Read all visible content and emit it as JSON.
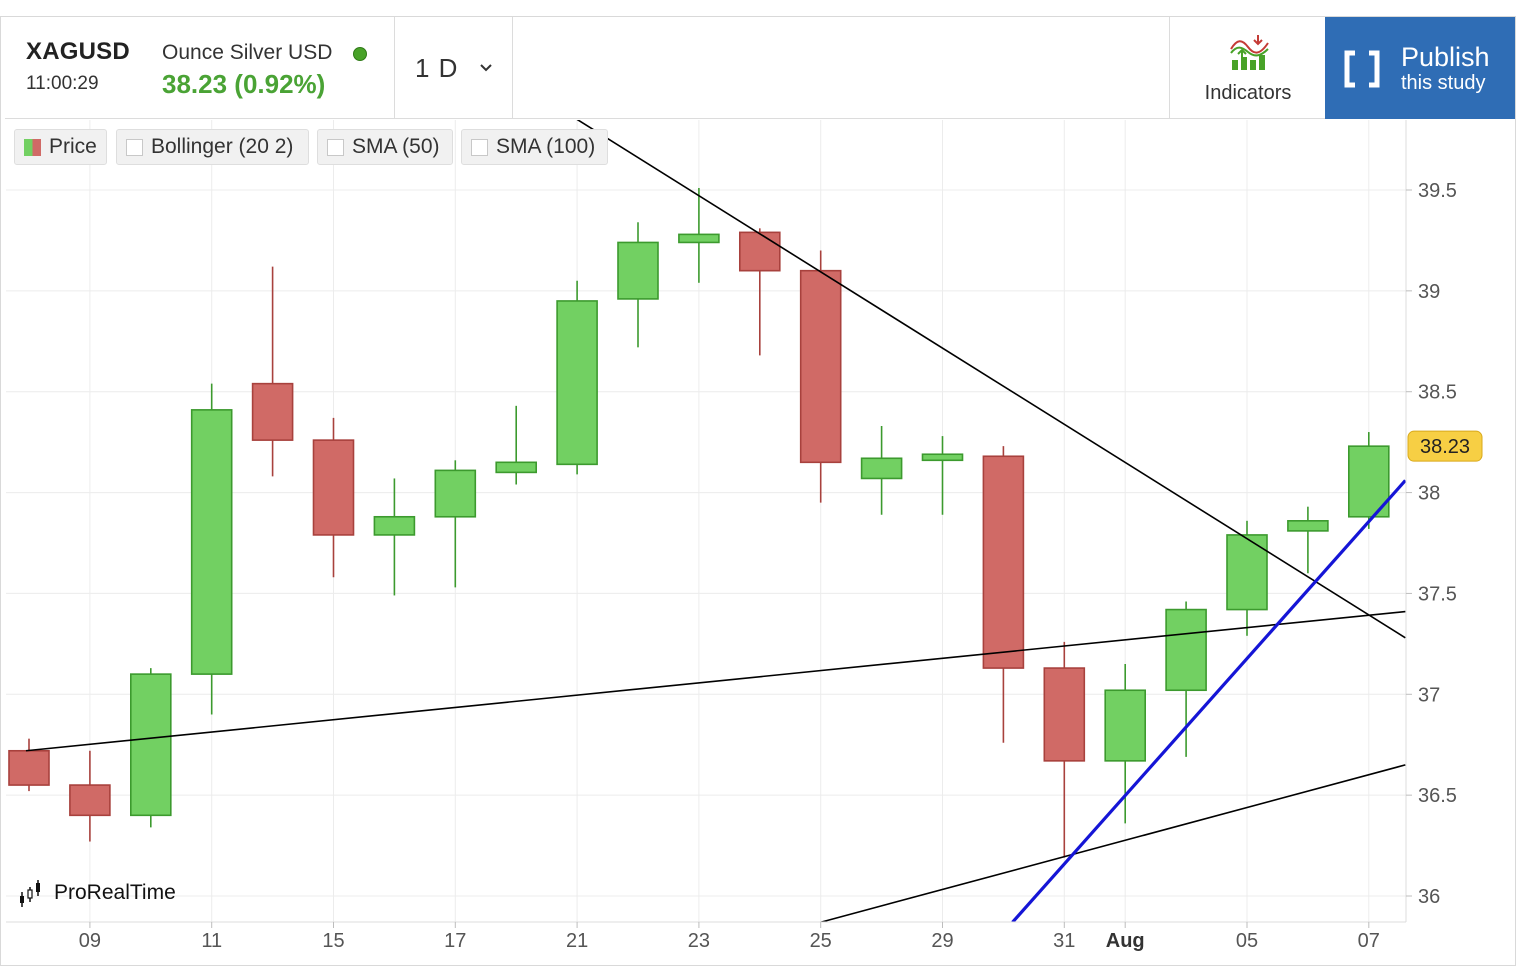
{
  "header": {
    "symbol": "XAGUSD",
    "symbol_name": "Ounce Silver USD",
    "time": "11:00:29",
    "price_change": "38.23 (0.92%)",
    "timeframe": "1 D",
    "indicators_label": "Indicators",
    "publish_line1": "Publish",
    "publish_line2": "this study"
  },
  "legend": {
    "price": "Price",
    "bollinger": "Bollinger (20 2)",
    "sma50": "SMA (50)",
    "sma100": "SMA (100)"
  },
  "watermark": "ProRealTime",
  "colors": {
    "up": "#72d062",
    "up_border": "#3c9a2e",
    "down": "#d06a66",
    "down_border": "#a8413d",
    "accent": "#2f6db5",
    "price_tag": "#f7cf44",
    "trend_blue": "#1515d6"
  },
  "chart_data": {
    "type": "candlestick",
    "symbol": "XAGUSD",
    "interval": "1 D",
    "last_price": 38.23,
    "last_price_label": "38.23",
    "y_ticks": [
      "39.5",
      "39",
      "38.5",
      "38",
      "37.5",
      "37",
      "36.5",
      "36"
    ],
    "y_tick_values": [
      39.5,
      39,
      38.5,
      38,
      37.5,
      37,
      36.5,
      36
    ],
    "x_tick_labels": [
      "09",
      "11",
      "15",
      "17",
      "21",
      "23",
      "25",
      "29",
      "31",
      "Aug",
      "05",
      "07"
    ],
    "x_tick_index": [
      1,
      3,
      5,
      7,
      9,
      11,
      13,
      15,
      17,
      18,
      20,
      22
    ],
    "ylim": [
      35.87,
      39.85
    ],
    "grid": true,
    "candles": [
      {
        "date": "Jul 08",
        "open": 36.72,
        "high": 36.78,
        "low": 36.52,
        "close": 36.55
      },
      {
        "date": "Jul 09",
        "open": 36.55,
        "high": 36.72,
        "low": 36.27,
        "close": 36.4
      },
      {
        "date": "Jul 10",
        "open": 36.4,
        "high": 37.13,
        "low": 36.34,
        "close": 37.1
      },
      {
        "date": "Jul 11",
        "open": 37.1,
        "high": 38.54,
        "low": 36.9,
        "close": 38.41
      },
      {
        "date": "Jul 14",
        "open": 38.54,
        "high": 39.12,
        "low": 38.08,
        "close": 38.26
      },
      {
        "date": "Jul 15",
        "open": 38.26,
        "high": 38.37,
        "low": 37.58,
        "close": 37.79
      },
      {
        "date": "Jul 16",
        "open": 37.79,
        "high": 38.07,
        "low": 37.49,
        "close": 37.88
      },
      {
        "date": "Jul 17",
        "open": 37.88,
        "high": 38.16,
        "low": 37.53,
        "close": 38.11
      },
      {
        "date": "Jul 18",
        "open": 38.1,
        "high": 38.43,
        "low": 38.04,
        "close": 38.15
      },
      {
        "date": "Jul 21",
        "open": 38.14,
        "high": 39.05,
        "low": 38.09,
        "close": 38.95
      },
      {
        "date": "Jul 22",
        "open": 38.96,
        "high": 39.34,
        "low": 38.72,
        "close": 39.24
      },
      {
        "date": "Jul 23",
        "open": 39.24,
        "high": 39.51,
        "low": 39.04,
        "close": 39.28
      },
      {
        "date": "Jul 24",
        "open": 39.29,
        "high": 39.31,
        "low": 38.68,
        "close": 39.1
      },
      {
        "date": "Jul 25",
        "open": 39.1,
        "high": 39.2,
        "low": 37.95,
        "close": 38.15
      },
      {
        "date": "Jul 28",
        "open": 38.07,
        "high": 38.33,
        "low": 37.89,
        "close": 38.17
      },
      {
        "date": "Jul 29",
        "open": 38.16,
        "high": 38.28,
        "low": 37.89,
        "close": 38.19
      },
      {
        "date": "Jul 30",
        "open": 38.18,
        "high": 38.23,
        "low": 36.76,
        "close": 37.13
      },
      {
        "date": "Jul 31",
        "open": 37.13,
        "high": 37.26,
        "low": 36.19,
        "close": 36.67
      },
      {
        "date": "Aug 01",
        "open": 36.67,
        "high": 37.15,
        "low": 36.36,
        "close": 37.02
      },
      {
        "date": "Aug 04",
        "open": 37.02,
        "high": 37.46,
        "low": 36.69,
        "close": 37.42
      },
      {
        "date": "Aug 05",
        "open": 37.42,
        "high": 37.86,
        "low": 37.29,
        "close": 37.79
      },
      {
        "date": "Aug 06",
        "open": 37.81,
        "high": 37.93,
        "low": 37.6,
        "close": 37.86
      },
      {
        "date": "Aug 07",
        "open": 37.88,
        "high": 38.3,
        "low": 37.82,
        "close": 38.23
      }
    ],
    "trendlines": [
      {
        "color": "#000000",
        "from": {
          "index": 9,
          "price": 39.85
        },
        "to": {
          "index": 22.6,
          "price": 37.28
        }
      },
      {
        "color": "#000000",
        "from": {
          "index": -0.05,
          "price": 36.72
        },
        "to": {
          "index": 22.6,
          "price": 37.41
        }
      },
      {
        "color": "#000000",
        "from": {
          "index": 13.0,
          "price": 35.87
        },
        "to": {
          "index": 22.6,
          "price": 36.65
        }
      },
      {
        "color": "#1515d6",
        "from": {
          "index": 16.15,
          "price": 35.87
        },
        "to": {
          "index": 22.6,
          "price": 38.06
        }
      }
    ]
  }
}
